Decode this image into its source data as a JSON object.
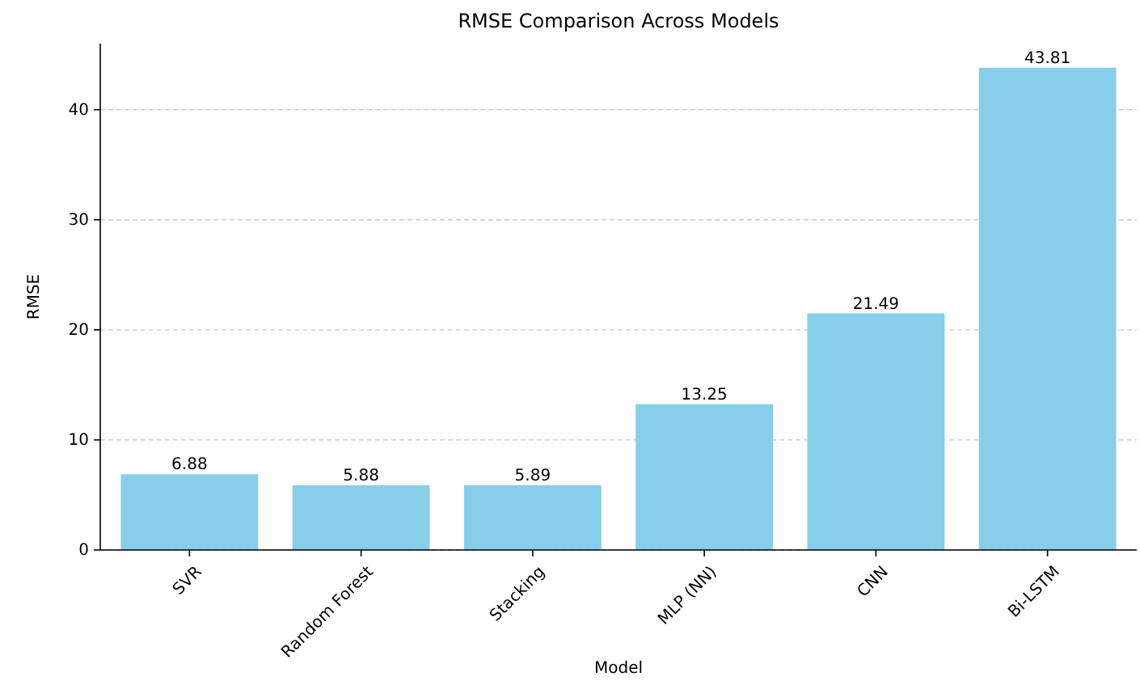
{
  "chart_data": {
    "type": "bar",
    "title": "RMSE Comparison Across Models",
    "xlabel": "Model",
    "ylabel": "RMSE",
    "categories": [
      "SVR",
      "Random Forest",
      "Stacking",
      "MLP (NN)",
      "CNN",
      "Bi-LSTM"
    ],
    "values": [
      6.88,
      5.88,
      5.89,
      13.25,
      21.49,
      43.81
    ],
    "color": "#87ceeb",
    "ylim": [
      0,
      46
    ],
    "yticks": [
      0,
      10,
      20,
      30,
      40
    ],
    "grid": "y",
    "data_labels": true
  }
}
